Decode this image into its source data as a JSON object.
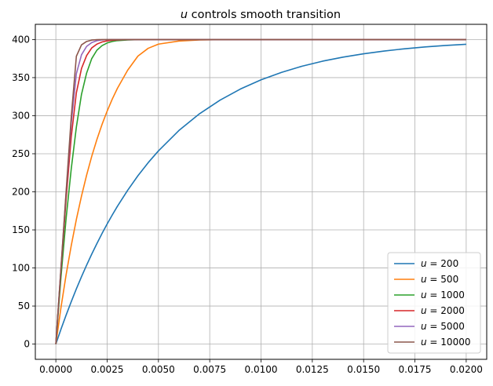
{
  "chart_data": {
    "type": "line",
    "title": "u controls smooth transition",
    "title_var": "u",
    "title_rest": " controls smooth transition",
    "xlabel": "",
    "ylabel": "",
    "xlim": [
      -0.001,
      0.021
    ],
    "ylim": [
      -20,
      420
    ],
    "x_ticks": [
      0.0,
      0.0025,
      0.005,
      0.0075,
      0.01,
      0.0125,
      0.015,
      0.0175,
      0.02
    ],
    "x_tick_labels": [
      "0.0000",
      "0.0025",
      "0.0050",
      "0.0075",
      "0.0100",
      "0.0125",
      "0.0150",
      "0.0175",
      "0.0200"
    ],
    "y_ticks": [
      0,
      50,
      100,
      150,
      200,
      250,
      300,
      350,
      400
    ],
    "y_tick_labels": [
      "0",
      "50",
      "100",
      "150",
      "200",
      "250",
      "300",
      "350",
      "400"
    ],
    "grid": true,
    "legend_position": "bottom-right",
    "x": [
      0,
      0.00025,
      0.0005,
      0.00075,
      0.001,
      0.00125,
      0.0015,
      0.00175,
      0.002,
      0.00225,
      0.0025,
      0.00275,
      0.003,
      0.0035,
      0.004,
      0.0045,
      0.005,
      0.006,
      0.007,
      0.008,
      0.009,
      0.01,
      0.011,
      0.012,
      0.013,
      0.014,
      0.015,
      0.016,
      0.017,
      0.018,
      0.019,
      0.02
    ],
    "series": [
      {
        "name": "u = 200",
        "var": "u",
        "value_label": "200",
        "color": "#1f77b4",
        "values": [
          0,
          19.5,
          38.0,
          55.7,
          72.5,
          88.5,
          103.7,
          118.2,
          132.0,
          145.2,
          157.7,
          169.6,
          181.0,
          202.0,
          221.1,
          238.3,
          253.8,
          280.6,
          302.5,
          320.4,
          335.1,
          347.1,
          356.9,
          365.0,
          371.6,
          376.9,
          381.3,
          384.9,
          387.9,
          390.3,
          392.2,
          393.8
        ]
      },
      {
        "name": "u = 500",
        "var": "u",
        "value_label": "500",
        "color": "#ff7f0e",
        "values": [
          0,
          48.0,
          91.0,
          129.3,
          163.7,
          194.4,
          222.0,
          246.7,
          268.7,
          288.4,
          306.0,
          321.8,
          335.9,
          359.7,
          378.3,
          388.5,
          394.0,
          398.0,
          399.4,
          399.8,
          399.95,
          400,
          400,
          400,
          400,
          400,
          400,
          400,
          400,
          400,
          400,
          400
        ]
      },
      {
        "name": "u = 1000",
        "var": "u",
        "value_label": "1000",
        "color": "#2ca02c",
        "values": [
          0,
          88.0,
          165.0,
          230.0,
          285.0,
          328.0,
          356.0,
          375.0,
          386.0,
          392.0,
          395.5,
          397.5,
          398.6,
          399.4,
          399.8,
          399.95,
          400,
          400,
          400,
          400,
          400,
          400,
          400,
          400,
          400,
          400,
          400,
          400,
          400,
          400,
          400,
          400
        ]
      },
      {
        "name": "u = 2000",
        "var": "u",
        "value_label": "2000",
        "color": "#d62728",
        "values": [
          0,
          98.0,
          190.0,
          272.0,
          330.0,
          362.0,
          379.0,
          389.0,
          394.0,
          396.8,
          398.3,
          399.1,
          399.5,
          399.9,
          400,
          400,
          400,
          400,
          400,
          400,
          400,
          400,
          400,
          400,
          400,
          400,
          400,
          400,
          400,
          400,
          400,
          400
        ]
      },
      {
        "name": "u = 5000",
        "var": "u",
        "value_label": "5000",
        "color": "#9467bd",
        "values": [
          0,
          100.0,
          198.0,
          290.0,
          355.0,
          380.0,
          391.0,
          396.0,
          398.5,
          399.5,
          399.9,
          400,
          400,
          400,
          400,
          400,
          400,
          400,
          400,
          400,
          400,
          400,
          400,
          400,
          400,
          400,
          400,
          400,
          400,
          400,
          400,
          400
        ]
      },
      {
        "name": "u = 10000",
        "var": "u",
        "value_label": "10000",
        "color": "#8c564b",
        "values": [
          0,
          100.0,
          200.0,
          298.0,
          378.0,
          393.0,
          397.5,
          399.3,
          399.8,
          400,
          400,
          400,
          400,
          400,
          400,
          400,
          400,
          400,
          400,
          400,
          400,
          400,
          400,
          400,
          400,
          400,
          400,
          400,
          400,
          400,
          400,
          400
        ]
      }
    ]
  }
}
